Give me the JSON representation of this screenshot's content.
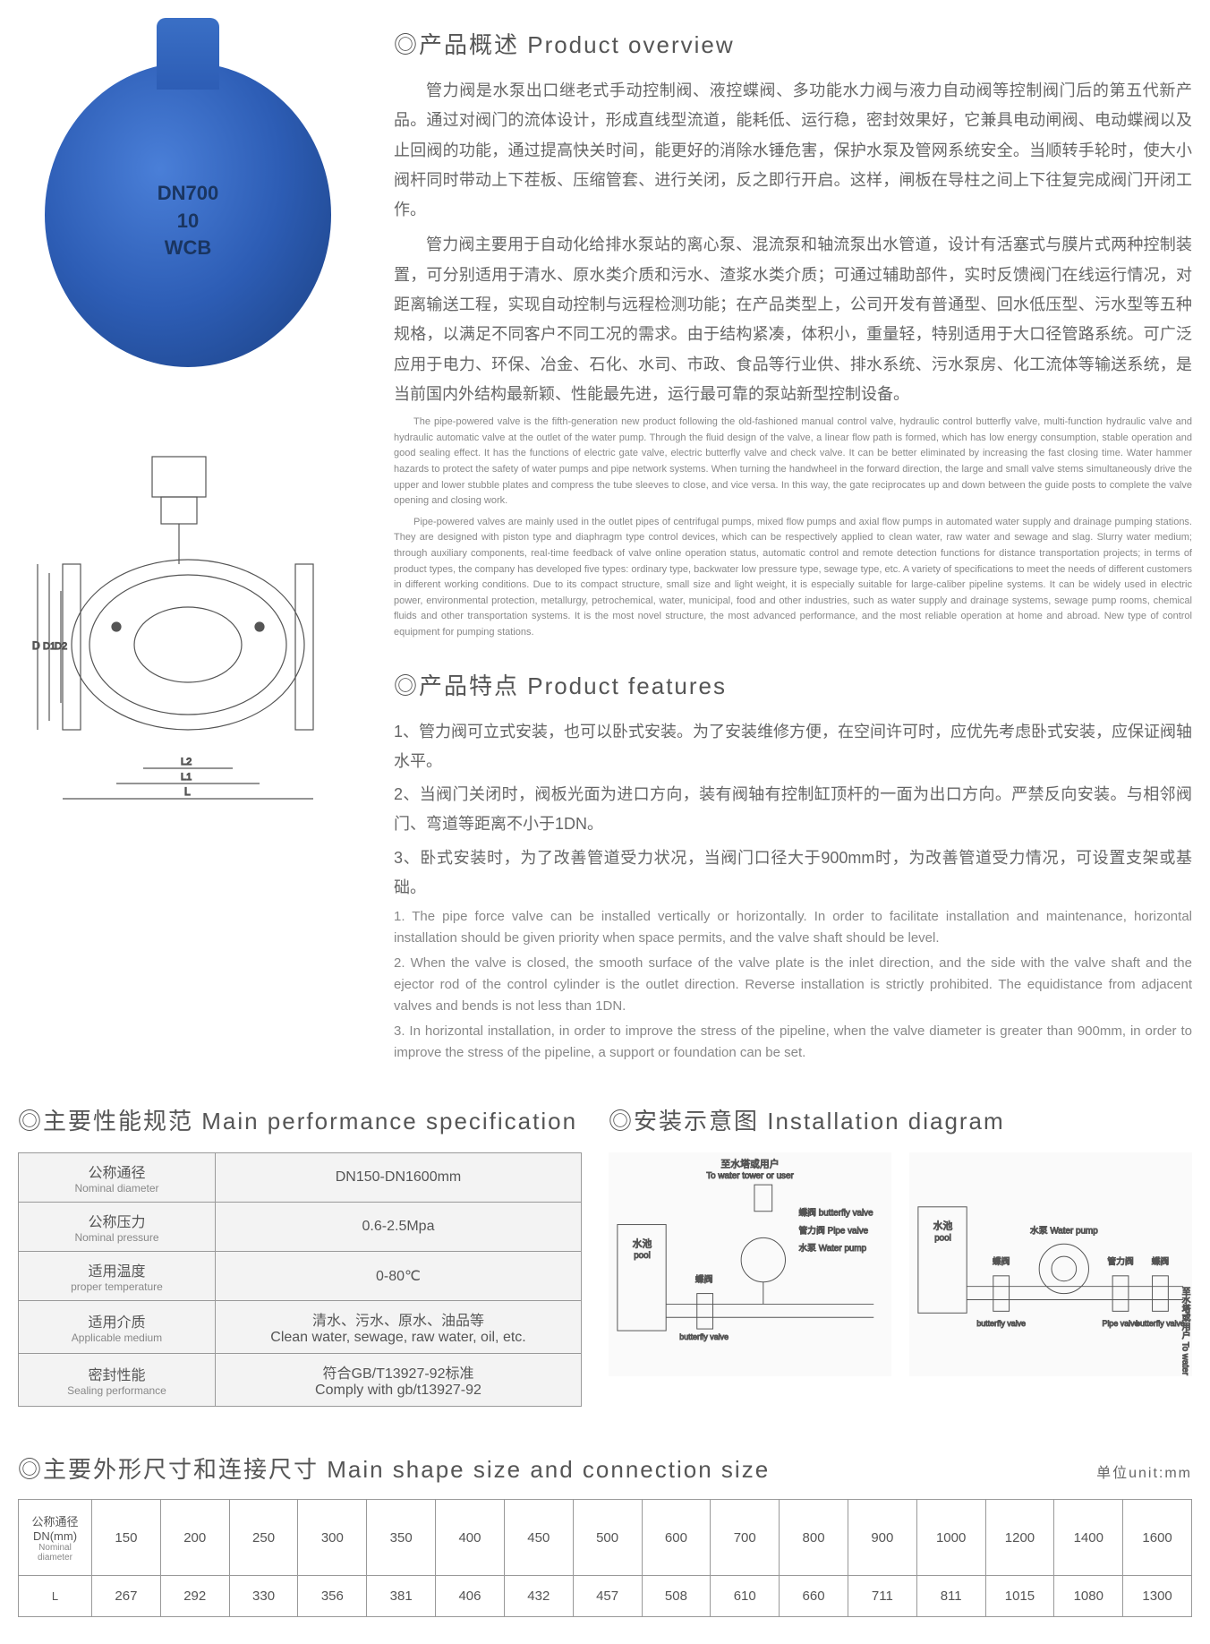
{
  "overview": {
    "title": "◎产品概述 Product overview",
    "cn_paras": [
      "管力阀是水泵出口继老式手动控制阀、液控蝶阀、多功能水力阀与液力自动阀等控制阀门后的第五代新产品。通过对阀门的流体设计，形成直线型流道，能耗低、运行稳，密封效果好，它兼具电动闸阀、电动蝶阀以及止回阀的功能，通过提高快关时间，能更好的消除水锤危害，保护水泵及管网系统安全。当顺转手轮时，使大小阀杆同时带动上下茬板、压缩管套、进行关闭，反之即行开启。这样，闸板在导柱之间上下往复完成阀门开闭工作。",
      "管力阀主要用于自动化给排水泵站的离心泵、混流泵和轴流泵出水管道，设计有活塞式与膜片式两种控制装置，可分别适用于清水、原水类介质和污水、渣浆水类介质；可通过辅助部件，实时反馈阀门在线运行情况，对距离输送工程，实现自动控制与远程检测功能；在产品类型上，公司开发有普通型、回水低压型、污水型等五种规格，以满足不同客户不同工况的需求。由于结构紧凑，体积小，重量轻，特别适用于大口径管路系统。可广泛应用于电力、环保、冶金、石化、水司、市政、食品等行业供、排水系统、污水泵房、化工流体等输送系统，是当前国内外结构最新颖、性能最先进，运行最可靠的泵站新型控制设备。"
    ],
    "en_paras": [
      "The pipe-powered valve is the fifth-generation new product following the old-fashioned manual control valve, hydraulic control butterfly valve, multi-function hydraulic valve and hydraulic automatic valve at the outlet of the water pump. Through the fluid design of the valve, a linear flow path is formed, which has low energy consumption, stable operation and good sealing effect. It has the functions of electric gate valve, electric butterfly valve and check valve. It can be better eliminated by increasing the fast closing time. Water hammer hazards to protect the safety of water pumps and pipe network systems. When turning the handwheel in the forward direction, the large and small valve stems simultaneously drive the upper and lower stubble plates and compress the tube sleeves to close, and vice versa. In this way, the gate reciprocates up and down between the guide posts to complete the valve opening and closing work.",
      "Pipe-powered valves are mainly used in the outlet pipes of centrifugal pumps, mixed flow pumps and axial flow pumps in automated water supply and drainage pumping stations. They are designed with piston type and diaphragm type control devices, which can be respectively applied to clean water, raw water and sewage and slag. Slurry water medium; through auxiliary components, real-time feedback of valve online operation status, automatic control and remote detection functions for distance transportation projects; in terms of product types, the company has developed five types: ordinary type, backwater low pressure type, sewage type, etc. A variety of specifications to meet the needs of different customers in different working conditions. Due to its compact structure, small size and light weight, it is especially suitable for large-caliber pipeline systems. It can be widely used in electric power, environmental protection, metallurgy, petrochemical, water, municipal, food and other industries, such as water supply and drainage systems, sewage pump rooms, chemical fluids and other transportation systems. It is the most novel structure, the most advanced performance, and the most reliable operation at home and abroad. New type of control equipment for pumping stations."
    ]
  },
  "features": {
    "title": "◎产品特点 Product features",
    "cn_items": [
      "1、管力阀可立式安装，也可以卧式安装。为了安装维修方便，在空间许可时，应优先考虑卧式安装，应保证阀轴水平。",
      "2、当阀门关闭时，阀板光面为进口方向，装有阀轴有控制缸顶杆的一面为出口方向。严禁反向安装。与相邻阀门、弯道等距离不小于1DN。",
      "3、卧式安装时，为了改善管道受力状况，当阀门口径大于900mm时，为改善管道受力情况，可设置支架或基础。"
    ],
    "en_items": [
      "1. The pipe force valve can be installed vertically or horizontally. In order to facilitate installation and maintenance, horizontal installation should be given priority when space permits, and the valve shaft should be level.",
      "2. When the valve is closed, the smooth surface of the valve plate is the inlet direction, and the side with the valve shaft and the ejector rod of the control cylinder is the outlet direction. Reverse installation is strictly prohibited. The equidistance from adjacent valves and bends is not less than 1DN.",
      "3. In horizontal installation, in order to improve the stress of the pipeline, when the valve diameter is greater than 900mm, in order to improve the stress of the pipeline, a support or foundation can be set."
    ]
  },
  "valve_marking": "DN700\n10\nWCB",
  "spec": {
    "title": "◎主要性能规范 Main performance specification",
    "rows": [
      {
        "label_cn": "公称通径",
        "label_en": "Nominal diameter",
        "value": "DN150-DN1600mm"
      },
      {
        "label_cn": "公称压力",
        "label_en": "Nominal pressure",
        "value": "0.6-2.5Mpa"
      },
      {
        "label_cn": "适用温度",
        "label_en": "proper temperature",
        "value": "0-80℃"
      },
      {
        "label_cn": "适用介质",
        "label_en": "Applicable medium",
        "value": "清水、污水、原水、油品等\nClean water, sewage, raw water, oil, etc."
      },
      {
        "label_cn": "密封性能",
        "label_en": "Sealing performance",
        "value": "符合GB/T13927-92标准\nComply with gb/t13927-92"
      }
    ]
  },
  "install": {
    "title": "◎安装示意图 Installation diagram",
    "labels": {
      "tower_cn": "至水塔或用户",
      "tower_en": "To water tower or user",
      "pool_cn": "水池",
      "pool_en": "pool",
      "bfly_cn": "蝶阀",
      "bfly_en": "butterfly valve",
      "pipe_cn": "管力阀",
      "pipe_en": "Pipe valve",
      "pump_cn": "水泵",
      "pump_en": "Water pump"
    }
  },
  "size": {
    "title": "◎主要外形尺寸和连接尺寸 Main shape size and connection size",
    "unit": "单位unit:mm",
    "header_cn": "公称通径DN(mm)",
    "header_en": "Nominal diameter",
    "dn_values": [
      "150",
      "200",
      "250",
      "300",
      "350",
      "400",
      "450",
      "500",
      "600",
      "700",
      "800",
      "900",
      "1000",
      "1200",
      "1400",
      "1600"
    ],
    "L_label": "L",
    "L_values": [
      "267",
      "292",
      "330",
      "356",
      "381",
      "406",
      "432",
      "457",
      "508",
      "610",
      "660",
      "711",
      "811",
      "1015",
      "1080",
      "1300"
    ]
  },
  "tech_diagram_dims": [
    "D",
    "D1",
    "D2",
    "L1",
    "L2",
    "L"
  ],
  "colors": {
    "text_main": "#555",
    "text_light": "#888",
    "border": "#999",
    "bg_cell": "#f3f3f3",
    "valve_blue": "#2d5db5"
  }
}
